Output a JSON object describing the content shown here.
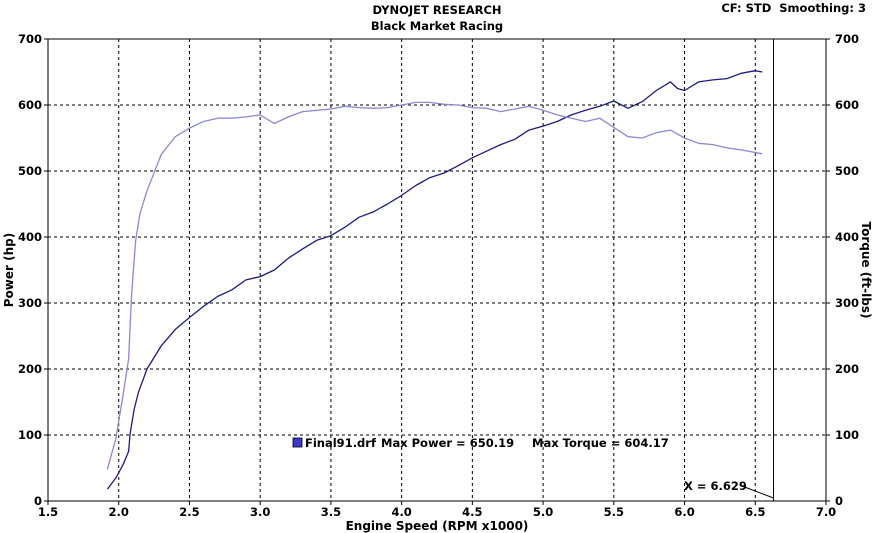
{
  "header": {
    "title": "DYNOJET RESEARCH",
    "subtitle": "Black Market Racing",
    "info": "CF: STD  Smoothing: 3"
  },
  "colors": {
    "power": "#1c1c80",
    "torque": "#8a8ad2",
    "grid": "#000000",
    "legend_swatch": "#3a3acc"
  },
  "chart_data": {
    "type": "line",
    "title": "DYNOJET RESEARCH",
    "subtitle": "Black Market Racing",
    "xlabel": "Engine Speed (RPM x1000)",
    "ylabel": "Power (hp)",
    "y2label": "Torque (ft-lbs)",
    "xlim": [
      1.5,
      7.0
    ],
    "ylim": [
      0,
      700
    ],
    "y2lim": [
      0,
      700
    ],
    "xticks": [
      "1.5",
      "2.0",
      "2.5",
      "3.0",
      "3.5",
      "4.0",
      "4.5",
      "5.0",
      "5.5",
      "6.0",
      "6.5",
      "7.0"
    ],
    "yticks": [
      "0",
      "100",
      "200",
      "300",
      "400",
      "500",
      "600",
      "700"
    ],
    "grid": true,
    "series": [
      {
        "name": "Power",
        "axis": "left",
        "x": [
          1.92,
          1.98,
          2.03,
          2.07,
          2.08,
          2.09,
          2.11,
          2.14,
          2.2,
          2.3,
          2.4,
          2.5,
          2.6,
          2.7,
          2.8,
          2.9,
          3.0,
          3.1,
          3.2,
          3.3,
          3.4,
          3.5,
          3.6,
          3.7,
          3.8,
          3.9,
          4.0,
          4.1,
          4.2,
          4.3,
          4.4,
          4.5,
          4.6,
          4.7,
          4.8,
          4.9,
          5.0,
          5.1,
          5.2,
          5.3,
          5.4,
          5.5,
          5.6,
          5.7,
          5.8,
          5.9,
          5.95,
          6.0,
          6.1,
          6.2,
          6.3,
          6.4,
          6.5,
          6.55
        ],
        "values": [
          18,
          35,
          55,
          75,
          100,
          115,
          140,
          165,
          200,
          235,
          260,
          278,
          295,
          310,
          320,
          335,
          340,
          350,
          368,
          382,
          395,
          402,
          415,
          430,
          438,
          450,
          463,
          478,
          490,
          497,
          508,
          520,
          530,
          540,
          548,
          562,
          568,
          575,
          585,
          592,
          598,
          606,
          595,
          605,
          622,
          635,
          625,
          622,
          635,
          638,
          640,
          648,
          652,
          650
        ]
      },
      {
        "name": "Torque",
        "axis": "right",
        "x": [
          1.92,
          1.98,
          2.03,
          2.07,
          2.08,
          2.09,
          2.1,
          2.12,
          2.15,
          2.2,
          2.3,
          2.4,
          2.5,
          2.6,
          2.7,
          2.8,
          2.9,
          3.0,
          3.1,
          3.2,
          3.3,
          3.4,
          3.5,
          3.6,
          3.7,
          3.8,
          3.9,
          4.0,
          4.1,
          4.2,
          4.3,
          4.4,
          4.5,
          4.6,
          4.7,
          4.8,
          4.9,
          5.0,
          5.1,
          5.2,
          5.3,
          5.4,
          5.5,
          5.6,
          5.7,
          5.8,
          5.9,
          6.0,
          6.1,
          6.2,
          6.3,
          6.4,
          6.5,
          6.55
        ],
        "values": [
          48,
          95,
          160,
          215,
          260,
          310,
          340,
          395,
          435,
          470,
          525,
          552,
          565,
          575,
          580,
          580,
          582,
          585,
          572,
          582,
          590,
          592,
          594,
          598,
          596,
          595,
          596,
          600,
          604,
          604,
          601,
          600,
          596,
          595,
          590,
          594,
          598,
          592,
          585,
          580,
          575,
          580,
          566,
          552,
          550,
          558,
          562,
          550,
          542,
          540,
          535,
          532,
          528,
          526
        ]
      }
    ],
    "legend": {
      "file": "Final91.drf",
      "max_power_label": "Max Power = 650.19",
      "max_torque_label": "Max Torque = 604.17"
    },
    "cursor": {
      "x": 6.629,
      "label": "X = 6.629"
    }
  }
}
